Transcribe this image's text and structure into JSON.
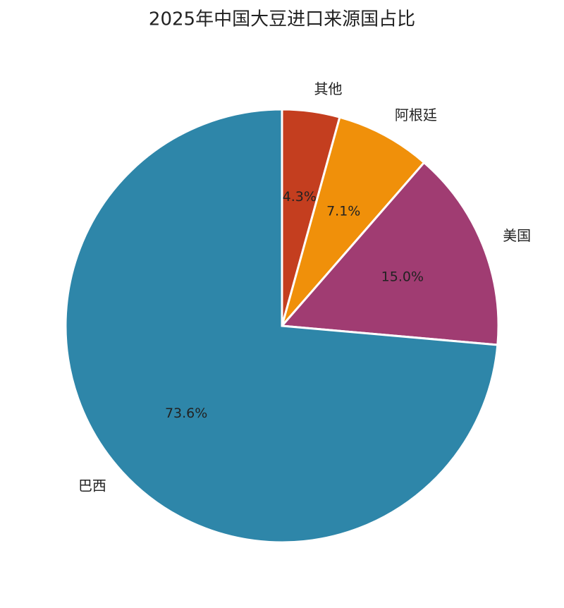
{
  "chart_data": {
    "type": "pie",
    "title": "2025年中国大豆进口来源国占比",
    "categories": [
      "其他",
      "阿根廷",
      "美国",
      "巴西"
    ],
    "values": [
      4.3,
      7.1,
      15.0,
      73.6
    ],
    "value_labels": [
      "4.3%",
      "7.1%",
      "15.0%",
      "73.6%"
    ],
    "colors": [
      "#c43e1f",
      "#f0900a",
      "#a03c72",
      "#2e86a9"
    ]
  }
}
